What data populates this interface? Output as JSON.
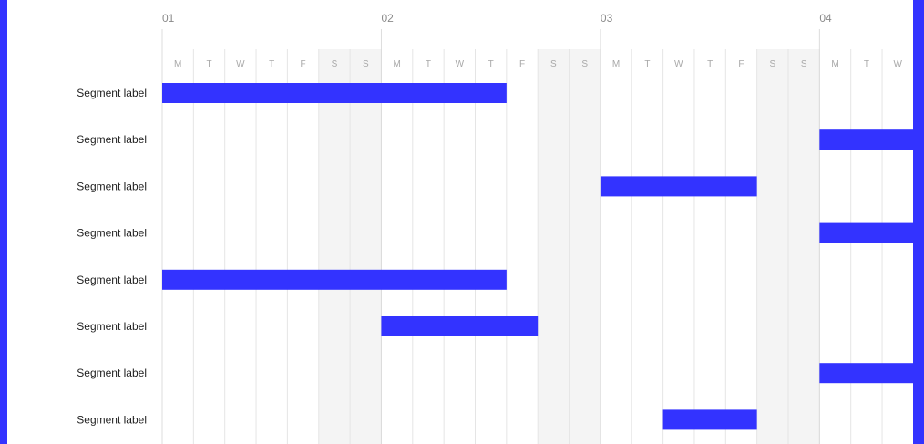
{
  "chart_data": {
    "type": "gantt",
    "weeks": [
      "01",
      "02",
      "03",
      "04"
    ],
    "days": [
      "M",
      "T",
      "W",
      "T",
      "F",
      "S",
      "S",
      "M",
      "T",
      "W",
      "T",
      "F",
      "S",
      "S",
      "M",
      "T",
      "W",
      "T",
      "F",
      "S",
      "S",
      "M",
      "T",
      "W"
    ],
    "weekend_days": [
      5,
      6,
      12,
      13,
      19,
      20
    ],
    "rows": [
      {
        "label": "Segment label",
        "start": 0,
        "end": 11
      },
      {
        "label": "Segment label",
        "start": 21,
        "end": 24
      },
      {
        "label": "Segment label",
        "start": 14,
        "end": 19
      },
      {
        "label": "Segment label",
        "start": 21,
        "end": 24
      },
      {
        "label": "Segment label",
        "start": 0,
        "end": 11
      },
      {
        "label": "Segment label",
        "start": 7,
        "end": 12
      },
      {
        "label": "Segment label",
        "start": 21,
        "end": 24
      },
      {
        "label": "Segment label",
        "start": 16,
        "end": 19
      }
    ],
    "bar_color": "#3333ff",
    "weekend_color": "#f4f4f4",
    "grid_color": "#e5e5e5"
  }
}
